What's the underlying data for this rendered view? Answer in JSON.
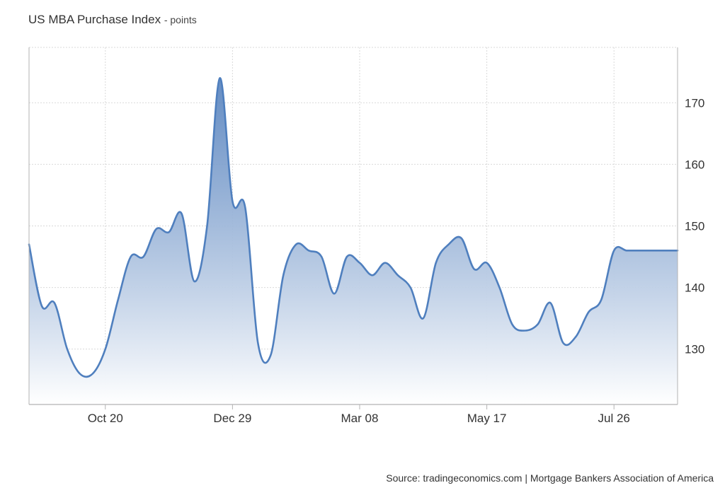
{
  "title": "US MBA Purchase Index",
  "unit_suffix": "points",
  "source": "Source: tradingeconomics.com | Mortgage Bankers Association of America",
  "colors": {
    "line": "#4f7fbe",
    "fill_top": "#4a79b9",
    "fill_bottom": "#ffffff",
    "grid": "#d9d9d9",
    "axis": "#b3b3b3"
  },
  "chart_data": {
    "type": "area",
    "title": "US MBA Purchase Index",
    "unit": "points",
    "x_tick_labels": [
      "Oct 20",
      "Dec 29",
      "Mar 08",
      "May 17",
      "Jul 26"
    ],
    "y_ticks": [
      130,
      140,
      150,
      160,
      170
    ],
    "ylim": [
      121,
      179
    ],
    "grid": true,
    "y_axis_position": "right",
    "series": [
      {
        "name": "US MBA Purchase Index",
        "x": [
          "Sep 08",
          "Sep 15",
          "Sep 22",
          "Sep 29",
          "Oct 06",
          "Oct 13",
          "Oct 20",
          "Oct 27",
          "Nov 03",
          "Nov 10",
          "Nov 17",
          "Nov 24",
          "Dec 01",
          "Dec 08",
          "Dec 15",
          "Dec 22",
          "Dec 29",
          "Jan 05",
          "Jan 12",
          "Jan 19",
          "Jan 26",
          "Feb 02",
          "Feb 09",
          "Feb 16",
          "Feb 23",
          "Mar 01",
          "Mar 08",
          "Mar 15",
          "Mar 22",
          "Mar 29",
          "Apr 05",
          "Apr 12",
          "Apr 19",
          "Apr 26",
          "May 03",
          "May 10",
          "May 17",
          "May 24",
          "May 31",
          "Jun 07",
          "Jun 14",
          "Jun 21",
          "Jun 28",
          "Jul 05",
          "Jul 12",
          "Jul 19",
          "Jul 26",
          "Aug 02",
          "Aug 09",
          "Aug 16",
          "Aug 23",
          "Aug 30"
        ],
        "values": [
          147,
          137,
          137.5,
          130,
          126,
          126,
          130,
          138,
          145,
          145,
          149.5,
          149,
          152,
          141,
          150,
          174,
          154,
          153,
          131,
          129,
          142,
          147,
          146,
          145,
          139,
          145,
          144,
          142,
          144,
          142,
          140,
          135,
          144,
          147,
          148,
          143,
          144,
          140,
          134,
          133,
          134,
          137.5,
          131,
          132,
          136,
          138,
          146,
          146,
          146,
          146,
          146,
          146
        ]
      }
    ]
  }
}
